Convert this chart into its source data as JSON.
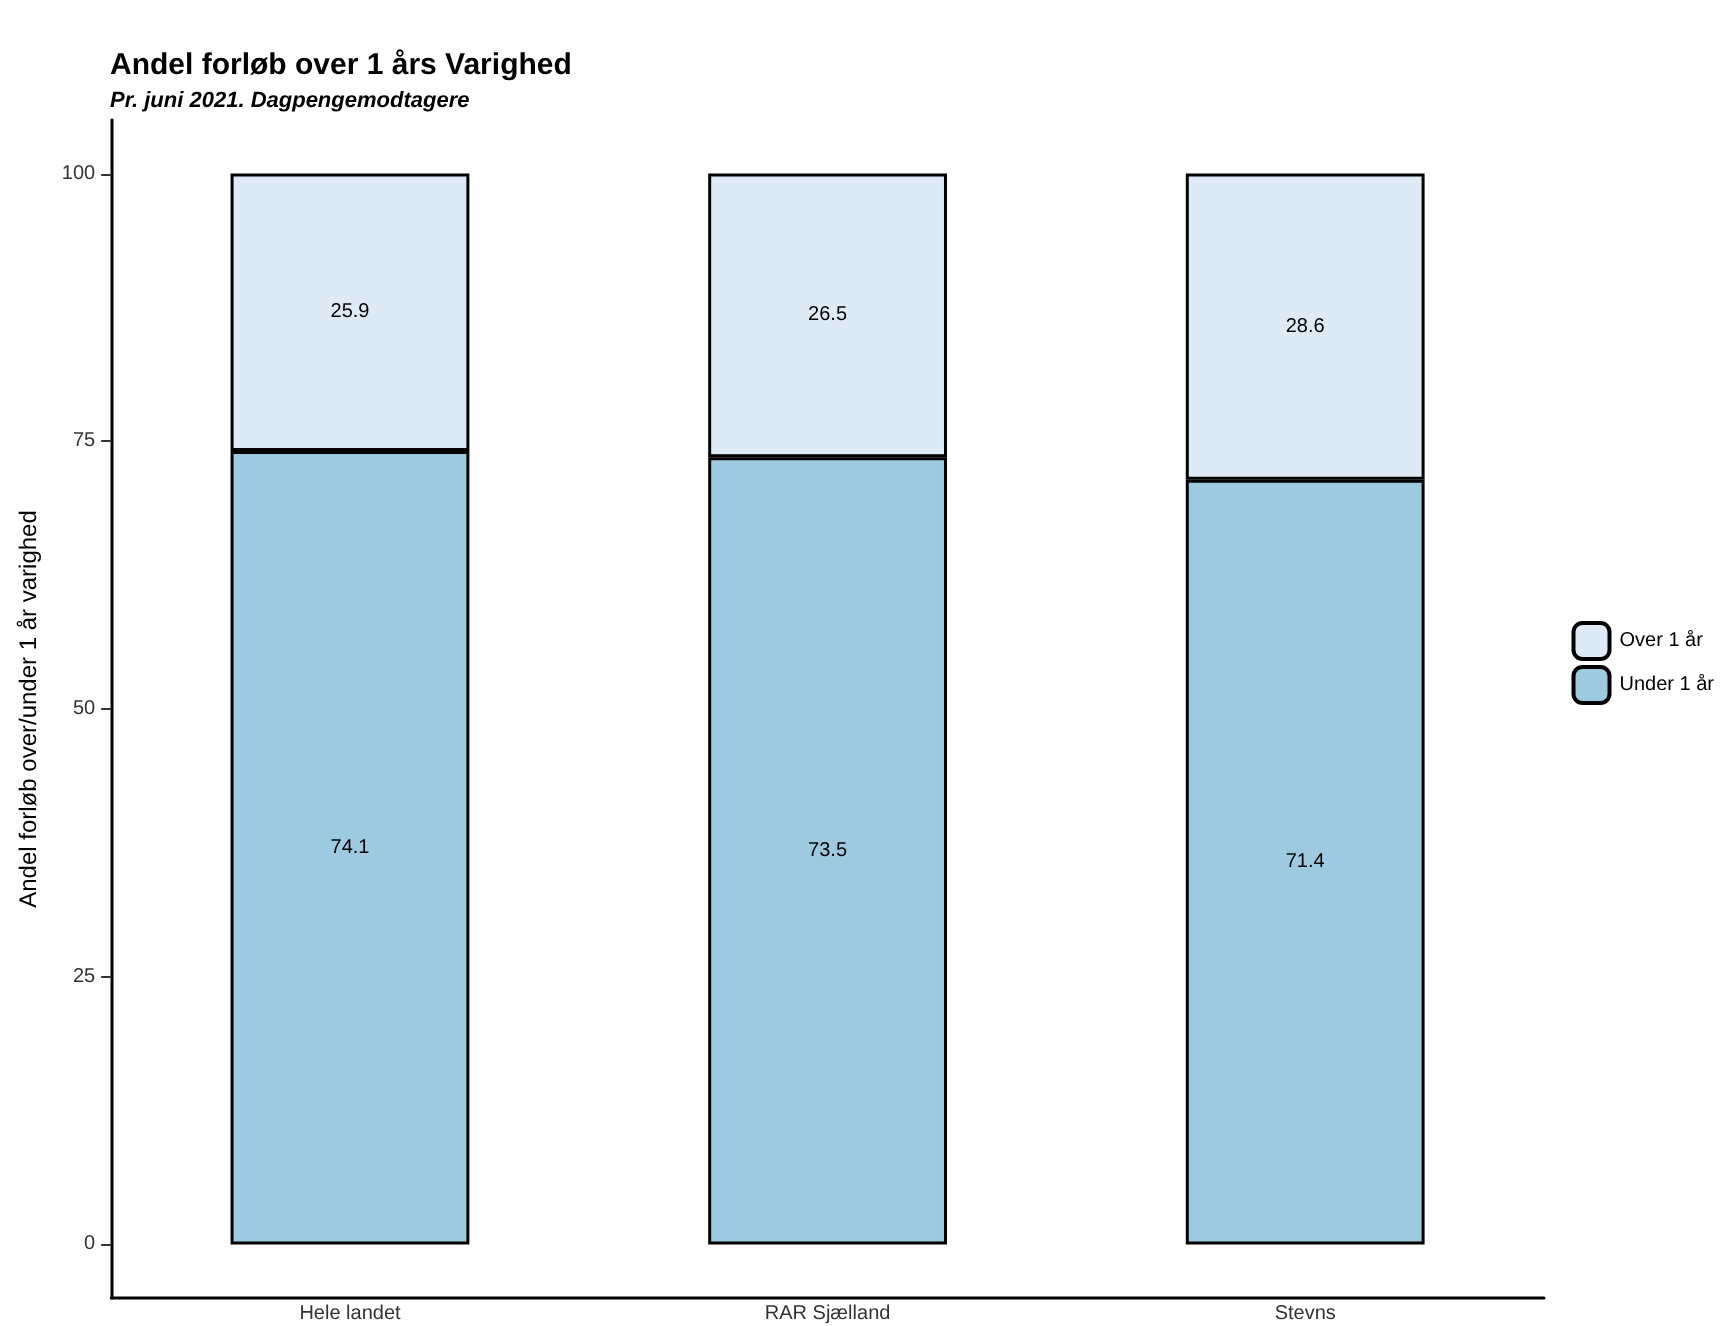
{
  "chart_data": {
    "type": "bar",
    "title": "Andel forløb over 1 års Varighed",
    "subtitle": "Pr. juni 2021. Dagpengemodtagere",
    "ylabel": "Andel forløb over/under 1 år varighed",
    "categories": [
      "Hele landet",
      "RAR Sjælland",
      "Stevns"
    ],
    "series": [
      {
        "name": "Under 1 år",
        "color": "#9ecae1",
        "values": [
          74.1,
          73.5,
          71.4
        ]
      },
      {
        "name": "Over 1 år",
        "color": "#deebf7",
        "values": [
          25.9,
          26.5,
          28.6
        ]
      }
    ],
    "stacked": true,
    "data_labels": true,
    "ylim": [
      -5,
      105
    ],
    "yticks": [
      0,
      25,
      50,
      75,
      100
    ],
    "grid": false,
    "legend": "right"
  }
}
